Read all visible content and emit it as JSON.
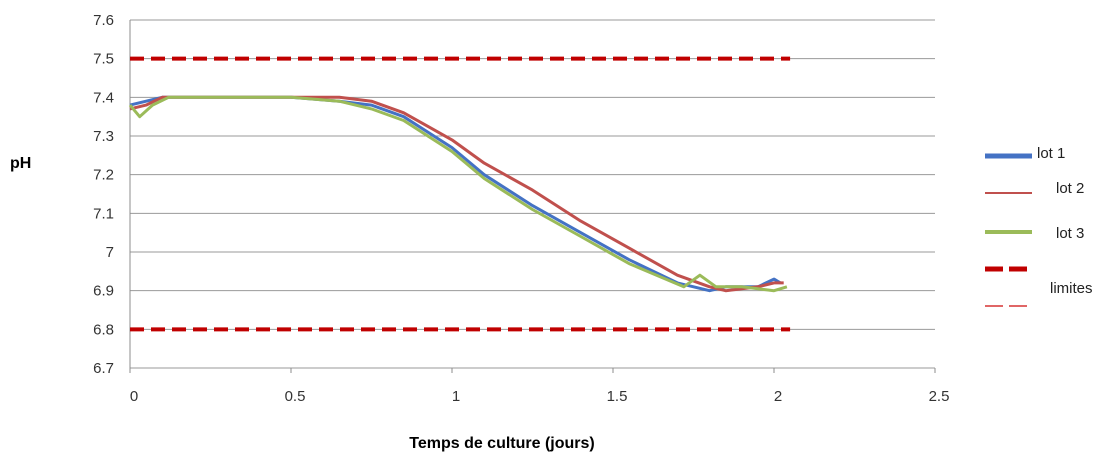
{
  "chart_data": {
    "type": "line",
    "xlabel": "Temps de culture (jours)",
    "ylabel": "pH",
    "xlim": [
      0,
      2.5
    ],
    "ylim": [
      6.7,
      7.6
    ],
    "x_ticks": [
      0,
      0.5,
      1,
      1.5,
      2,
      2.5
    ],
    "x_tick_labels": [
      "0",
      "0.5",
      "1",
      "1.5",
      "2",
      "2.5"
    ],
    "y_ticks": [
      6.7,
      6.8,
      6.9,
      7.0,
      7.1,
      7.2,
      7.3,
      7.4,
      7.5,
      7.6
    ],
    "y_tick_labels": [
      "6.7",
      "6.8",
      "6.9",
      "7",
      "7.1",
      "7.2",
      "7.3",
      "7.4",
      "7.5",
      "7.6"
    ],
    "grid": "horizontal",
    "legend_position": "right",
    "series": [
      {
        "name": "lot 1",
        "color": "#4472C4",
        "style": "solid",
        "x": [
          0,
          0.05,
          0.1,
          0.2,
          0.35,
          0.5,
          0.65,
          0.75,
          0.85,
          1.0,
          1.1,
          1.25,
          1.4,
          1.55,
          1.7,
          1.8,
          1.85,
          1.95,
          2.0,
          2.02
        ],
        "y": [
          7.38,
          7.39,
          7.4,
          7.4,
          7.4,
          7.4,
          7.39,
          7.38,
          7.35,
          7.27,
          7.2,
          7.12,
          7.05,
          6.98,
          6.92,
          6.9,
          6.91,
          6.91,
          6.93,
          6.92
        ]
      },
      {
        "name": "lot 2",
        "color": "#C0504D",
        "style": "solid",
        "x": [
          0,
          0.05,
          0.1,
          0.2,
          0.35,
          0.5,
          0.65,
          0.75,
          0.85,
          1.0,
          1.1,
          1.25,
          1.4,
          1.55,
          1.7,
          1.8,
          1.85,
          1.95,
          2.0,
          2.03
        ],
        "y": [
          7.37,
          7.38,
          7.4,
          7.4,
          7.4,
          7.4,
          7.4,
          7.39,
          7.36,
          7.29,
          7.23,
          7.16,
          7.08,
          7.01,
          6.94,
          6.91,
          6.9,
          6.91,
          6.92,
          6.92
        ]
      },
      {
        "name": "lot 3",
        "color": "#9BBB59",
        "style": "solid",
        "x": [
          0,
          0.03,
          0.07,
          0.12,
          0.2,
          0.35,
          0.5,
          0.65,
          0.75,
          0.85,
          1.0,
          1.1,
          1.25,
          1.4,
          1.55,
          1.72,
          1.77,
          1.82,
          1.9,
          2.0,
          2.04
        ],
        "y": [
          7.38,
          7.35,
          7.38,
          7.4,
          7.4,
          7.4,
          7.4,
          7.39,
          7.37,
          7.34,
          7.26,
          7.19,
          7.11,
          7.04,
          6.97,
          6.91,
          6.94,
          6.91,
          6.91,
          6.9,
          6.91
        ]
      }
    ],
    "limits": {
      "name": "limites",
      "color": "#C00000",
      "style": "dashed",
      "upper": 7.5,
      "lower": 6.8,
      "x_start": 0,
      "x_end": 2.05
    },
    "legend_entries": [
      "lot 1",
      "lot 2",
      "lot 3",
      "limites"
    ]
  }
}
